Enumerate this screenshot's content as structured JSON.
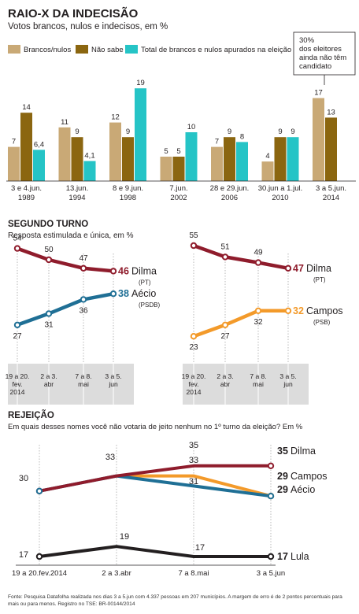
{
  "colors": {
    "brancos": "#c9a976",
    "naosabe": "#8b6610",
    "total": "#25c4c6",
    "dilma": "#8f1c2c",
    "aecio": "#1f6f95",
    "campos": "#f39a2a",
    "lula": "#231f20",
    "band": "#dcdcdc"
  },
  "chart_data": [
    {
      "type": "bar",
      "title": "RAIO-X DA INDECISÃO",
      "subtitle": "Votos brancos, nulos e indecisos, em %",
      "legend": [
        "Brancos/nulos",
        "Não sabe",
        "Total de brancos e nulos apurados na eleição"
      ],
      "categories": [
        [
          "3 e 4.jun.",
          "1989"
        ],
        [
          "13.jun.",
          "1994"
        ],
        [
          "8 e 9.jun.",
          "1998"
        ],
        [
          "7.jun.",
          "2002"
        ],
        [
          "28 e 29.jun.",
          "2006"
        ],
        [
          "30.jun a 1.jul.",
          "2010"
        ],
        [
          "3 a 5.jun.",
          "2014"
        ]
      ],
      "series": [
        {
          "name": "Brancos/nulos",
          "values": [
            7,
            11,
            12,
            5,
            7,
            4,
            17
          ],
          "labels": [
            "7",
            "11",
            "12",
            "5",
            "7",
            "4",
            "17"
          ]
        },
        {
          "name": "Não sabe",
          "values": [
            14,
            9,
            9,
            5,
            9,
            9,
            13
          ],
          "labels": [
            "14",
            "9",
            "9",
            "5",
            "9",
            "9",
            "13"
          ]
        },
        {
          "name": "Total de brancos e nulos apurados na eleição",
          "values": [
            6.4,
            4.1,
            19,
            10,
            8,
            9,
            null
          ],
          "labels": [
            "6,4",
            "4,1",
            "19",
            "10",
            "8",
            "9",
            ""
          ]
        }
      ],
      "callout": [
        "30%",
        "dos eleitores",
        "ainda não têm",
        "candidato"
      ]
    },
    {
      "type": "line",
      "section_title": "SEGUNDO TURNO",
      "section_subtitle": "Resposta estimulada e única, em %",
      "x": [
        [
          "19 a 20.",
          "fev.",
          "2014"
        ],
        [
          "2 a 3.",
          "abr"
        ],
        [
          "7 a 8.",
          "mai"
        ],
        [
          "3 a 5.",
          "jun"
        ]
      ],
      "panels": [
        {
          "series": [
            {
              "name": "Dilma",
              "party": "(PT)",
              "values": [
                54,
                50,
                47,
                46
              ]
            },
            {
              "name": "Aécio",
              "party": "(PSDB)",
              "values": [
                27,
                31,
                36,
                38
              ]
            }
          ]
        },
        {
          "series": [
            {
              "name": "Dilma",
              "party": "(PT)",
              "values": [
                55,
                51,
                49,
                47
              ]
            },
            {
              "name": "Campos",
              "party": "(PSB)",
              "values": [
                23,
                27,
                32,
                32
              ]
            }
          ]
        }
      ]
    },
    {
      "type": "line",
      "section_title": "REJEIÇÃO",
      "section_subtitle": "Em quais desses nomes você não votaria de jeito nenhum no 1º turno da eleição? Em %",
      "x": [
        "19 a 20.fev.2014",
        "2 a 3.abr",
        "7 a 8.mai",
        "3 a 5.jun"
      ],
      "series": [
        {
          "name": "Dilma",
          "values": [
            30,
            33,
            35,
            35
          ]
        },
        {
          "name": "Campos",
          "values": [
            null,
            33,
            33,
            29
          ]
        },
        {
          "name": "Aécio",
          "values": [
            30,
            33,
            31,
            29
          ]
        },
        {
          "name": "Lula",
          "values": [
            17,
            19,
            17,
            17
          ]
        }
      ]
    }
  ],
  "source": "Fonte: Pesquisa Datafolha realizada nos dias 3 a 5.jun com 4.337 pessoas em 207 municípios. A margem de erro é de 2 pontos percentuais para mais ou para menos. Registro no TSE: BR-00144/2014"
}
